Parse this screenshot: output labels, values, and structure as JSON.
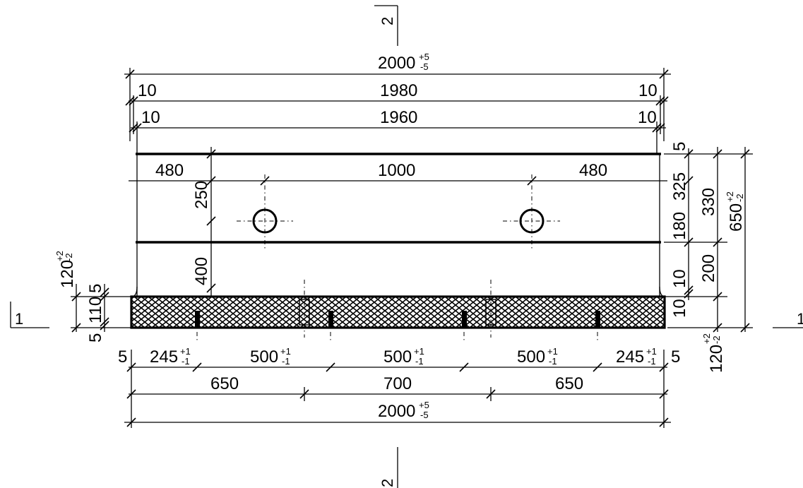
{
  "section_marks": {
    "top": "2",
    "bottom": "2",
    "left": "1",
    "right": "1"
  },
  "top_dims": {
    "overall": {
      "value": "2000",
      "tol_plus": "+5",
      "tol_minus": "-5"
    },
    "row2": {
      "left": "10",
      "middle": "1980",
      "right": "10"
    },
    "row3": {
      "left": "10",
      "middle": "1960",
      "right": "10"
    }
  },
  "inner_dims": {
    "left": "480",
    "middle": "1000",
    "right": "480",
    "v_upper": "250",
    "v_lower": "400"
  },
  "right_dims": {
    "top": "5",
    "d325": "325",
    "d180": "180",
    "d10a": "10",
    "d10b": "10",
    "d330": "330",
    "d200": "200",
    "overall": {
      "value": "650",
      "tol_plus": "+2",
      "tol_minus": "-2"
    },
    "bottom": {
      "value": "120",
      "tol_plus": "+2",
      "tol_minus": "-2"
    }
  },
  "left_dims": {
    "overall": {
      "value": "120",
      "tol_plus": "+2",
      "tol_minus": "-2"
    },
    "d5a": "5",
    "d110": "110",
    "d5b": "5"
  },
  "bottom_dims": {
    "row1": [
      {
        "value": "5"
      },
      {
        "value": "245",
        "tol_plus": "+1",
        "tol_minus": "-1"
      },
      {
        "value": "500",
        "tol_plus": "+1",
        "tol_minus": "-1"
      },
      {
        "value": "500",
        "tol_plus": "+1",
        "tol_minus": "-1"
      },
      {
        "value": "500",
        "tol_plus": "+1",
        "tol_minus": "-1"
      },
      {
        "value": "245",
        "tol_plus": "+1",
        "tol_minus": "-1"
      },
      {
        "value": "5"
      }
    ],
    "row2": {
      "left": "650",
      "middle": "700",
      "right": "650"
    },
    "overall": {
      "value": "2000",
      "tol_plus": "+5",
      "tol_minus": "-5"
    }
  }
}
